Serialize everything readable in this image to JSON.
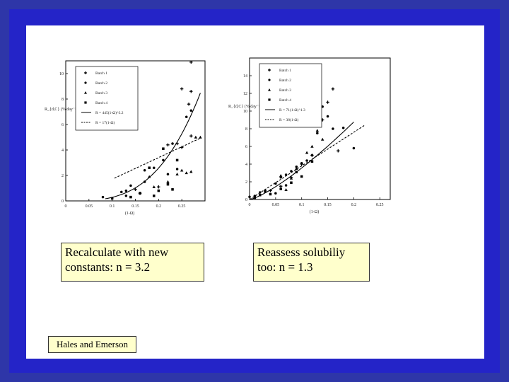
{
  "slide": {
    "caption_left": "Recalculate with new constants: n = 3.2",
    "caption_right": "Reassess solubiliy too: n = 1.3",
    "credit": "Hales and Emerson"
  },
  "marker_shapes": {
    "Batch 1": "plus",
    "Batch 2": "circle",
    "Batch 3": "triangle",
    "Batch 4": "square"
  },
  "chart_data": [
    {
      "type": "scatter",
      "xlabel": "(1-Ω)",
      "ylabel": "R_{d,C} (% day⁻¹)",
      "xlim": [
        0,
        0.3
      ],
      "ylim": [
        0,
        11
      ],
      "xticks": [
        "0",
        "0.05",
        "0.1",
        "0.15",
        "0.2",
        "0.25"
      ],
      "yticks": [
        "0",
        "2",
        "4",
        "6",
        "8",
        "10"
      ],
      "legend_position": "top-left",
      "legend": [
        "Batch 1",
        "Batch 2",
        "Batch 3",
        "Batch 4",
        "R = 445(1-Ω)^3.2",
        "R = 17(1-Ω)"
      ],
      "series": [
        {
          "name": "Batch 1",
          "points": [
            [
              0.27,
              10.9
            ],
            [
              0.27,
              8.6
            ],
            [
              0.265,
              7.6
            ],
            [
              0.25,
              8.8
            ],
            [
              0.22,
              4.4
            ],
            [
              0.24,
              4.5
            ],
            [
              0.27,
              5.1
            ],
            [
              0.15,
              0.9
            ],
            [
              0.16,
              0.6
            ],
            [
              0.2,
              1.1
            ],
            [
              0.25,
              4.2
            ]
          ]
        },
        {
          "name": "Batch 2",
          "points": [
            [
              0.08,
              0.3
            ],
            [
              0.13,
              0.4
            ],
            [
              0.13,
              0.8
            ],
            [
              0.17,
              2.4
            ],
            [
              0.19,
              2.6
            ],
            [
              0.21,
              3.2
            ],
            [
              0.23,
              4.5
            ],
            [
              0.22,
              2.1
            ],
            [
              0.24,
              2.5
            ],
            [
              0.27,
              7.1
            ],
            [
              0.26,
              6.6
            ],
            [
              0.12,
              0.7
            ],
            [
              0.14,
              1.2
            ],
            [
              0.17,
              1.5
            ]
          ]
        },
        {
          "name": "Batch 3",
          "points": [
            [
              0.19,
              1.1
            ],
            [
              0.22,
              1.5
            ],
            [
              0.24,
              2.1
            ],
            [
              0.25,
              2.4
            ],
            [
              0.26,
              2.2
            ],
            [
              0.27,
              2.3
            ],
            [
              0.28,
              5.0
            ],
            [
              0.29,
              5.0
            ],
            [
              0.18,
              1.9
            ]
          ]
        },
        {
          "name": "Batch 4",
          "points": [
            [
              0.1,
              0.2
            ],
            [
              0.14,
              0.3
            ],
            [
              0.16,
              0.6
            ],
            [
              0.19,
              0.4
            ],
            [
              0.2,
              0.8
            ],
            [
              0.22,
              1.3
            ],
            [
              0.23,
              0.9
            ],
            [
              0.24,
              3.2
            ],
            [
              0.21,
              4.1
            ],
            [
              0.18,
              2.6
            ]
          ]
        }
      ],
      "fit_lines": [
        {
          "name": "R = 445(1-Ω)^3.2",
          "style": "solid",
          "coef": 445,
          "exponent": 3.2,
          "x_range": [
            0.085,
            0.29
          ]
        },
        {
          "name": "R = 17(1-Ω)",
          "style": "dashed",
          "coef": 17,
          "exponent": 1,
          "x_range": [
            0.105,
            0.29
          ]
        }
      ]
    },
    {
      "type": "scatter",
      "xlabel": "(1-Ω)",
      "ylabel": "R_{d,C} (% day⁻¹)",
      "xlim": [
        0,
        0.27
      ],
      "ylim": [
        0,
        16
      ],
      "xticks": [
        "0",
        "0.05",
        "0.1",
        "0.15",
        "0.2",
        "0.25"
      ],
      "yticks": [
        "0",
        "2",
        "4",
        "6",
        "8",
        "10",
        "12",
        "14"
      ],
      "legend_position": "top-left",
      "legend": [
        "Batch 1",
        "Batch 2",
        "Batch 3",
        "Batch 4",
        "R = 71(1-Ω)^1.3",
        "R = 38(1-Ω)"
      ],
      "series": [
        {
          "name": "Batch 1",
          "points": [
            [
              0.14,
              9.0
            ],
            [
              0.15,
              11.0
            ],
            [
              0.16,
              12.5
            ],
            [
              0.13,
              8.5
            ],
            [
              0.1,
              4.0
            ],
            [
              0.12,
              5.0
            ],
            [
              0.17,
              5.5
            ],
            [
              0.08,
              2.5
            ],
            [
              0.06,
              1.5
            ],
            [
              0.04,
              1.0
            ]
          ]
        },
        {
          "name": "Batch 2",
          "points": [
            [
              0.0,
              0.3
            ],
            [
              0.01,
              0.4
            ],
            [
              0.02,
              0.8
            ],
            [
              0.03,
              1.0
            ],
            [
              0.05,
              1.8
            ],
            [
              0.06,
              2.5
            ],
            [
              0.07,
              2.8
            ],
            [
              0.08,
              3.2
            ],
            [
              0.09,
              3.7
            ],
            [
              0.1,
              4.1
            ],
            [
              0.11,
              4.4
            ],
            [
              0.12,
              5.0
            ],
            [
              0.13,
              7.5
            ],
            [
              0.14,
              10.5
            ],
            [
              0.15,
              9.4
            ],
            [
              0.16,
              8.0
            ],
            [
              0.18,
              8.1
            ],
            [
              0.2,
              5.8
            ],
            [
              0.05,
              0.7
            ],
            [
              0.07,
              1.6
            ]
          ]
        },
        {
          "name": "Batch 3",
          "points": [
            [
              0.06,
              2.7
            ],
            [
              0.08,
              2.4
            ],
            [
              0.09,
              3.5
            ],
            [
              0.11,
              5.3
            ],
            [
              0.12,
              6.0
            ],
            [
              0.13,
              7.8
            ],
            [
              0.14,
              6.8
            ],
            [
              0.07,
              1.1
            ]
          ]
        },
        {
          "name": "Batch 4",
          "points": [
            [
              0.01,
              0.2
            ],
            [
              0.02,
              0.5
            ],
            [
              0.04,
              0.6
            ],
            [
              0.06,
              1.2
            ],
            [
              0.08,
              1.9
            ],
            [
              0.1,
              2.6
            ],
            [
              0.12,
              4.3
            ],
            [
              0.09,
              3.1
            ],
            [
              0.03,
              0.9
            ]
          ]
        }
      ],
      "fit_lines": [
        {
          "name": "R = 71(1-Ω)^1.3",
          "style": "solid",
          "coef": 71,
          "exponent": 1.3,
          "x_range": [
            0.0,
            0.2
          ]
        },
        {
          "name": "R = 38(1-Ω)",
          "style": "dashed",
          "coef": 38,
          "exponent": 1,
          "x_range": [
            0.0,
            0.22
          ]
        }
      ]
    }
  ]
}
